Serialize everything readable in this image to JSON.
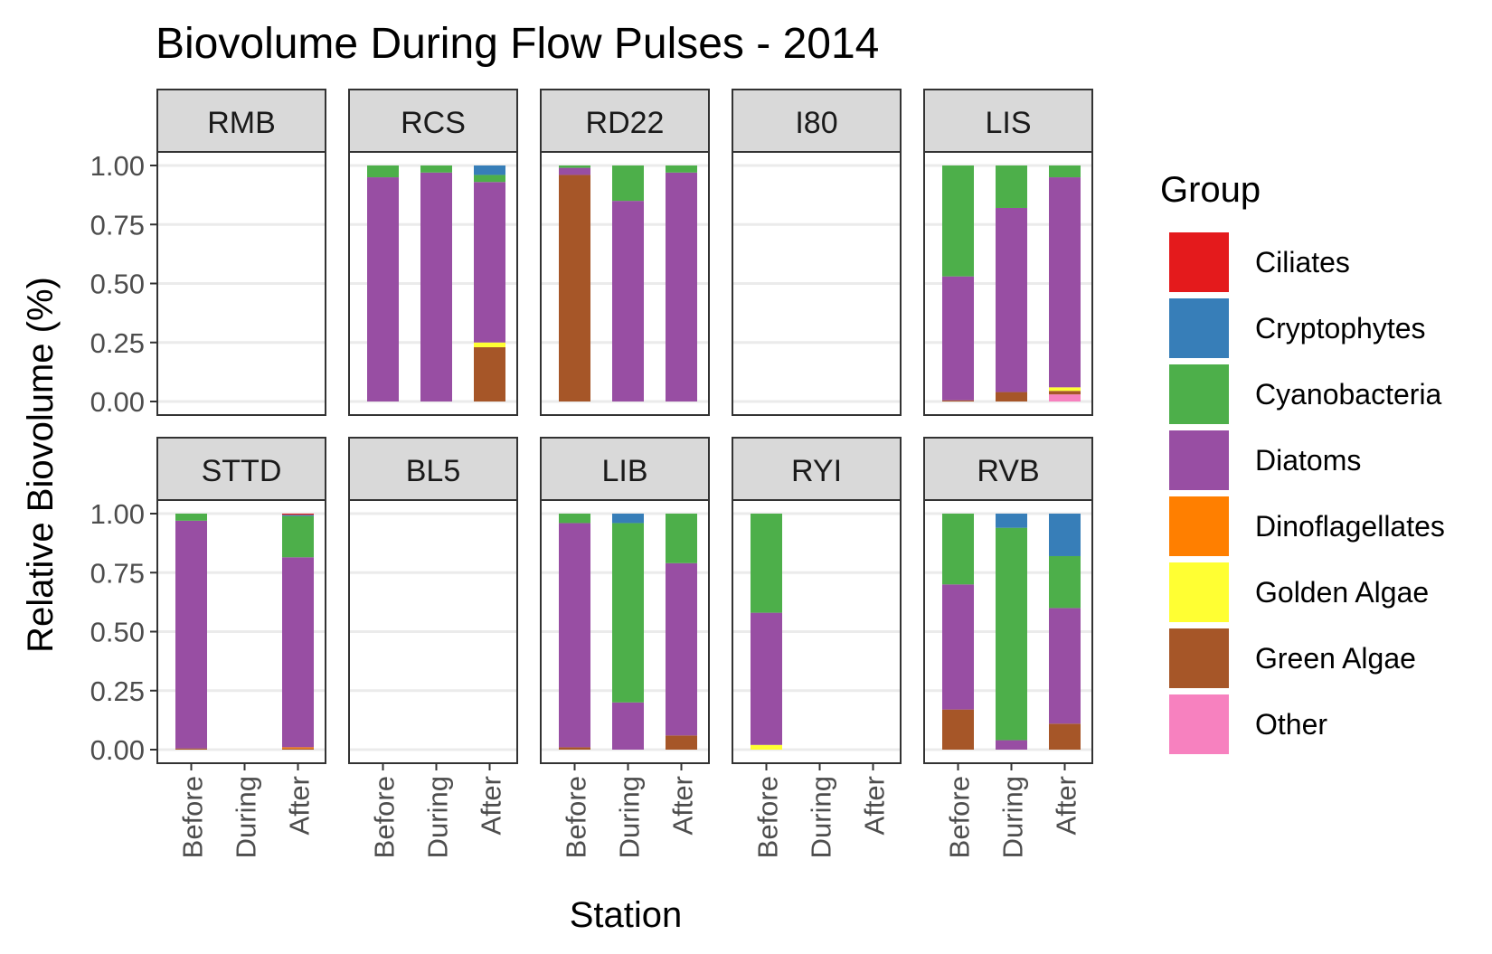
{
  "chart_data": {
    "type": "bar",
    "stacked": true,
    "faceted": true,
    "title": "Biovolume During Flow Pulses - 2014",
    "xlabel": "Station",
    "ylabel": "Relative Biovolume (%)",
    "ylim": [
      0,
      1
    ],
    "yticks": [
      "0.00",
      "0.25",
      "0.50",
      "0.75",
      "1.00"
    ],
    "categories": [
      "Before",
      "During",
      "After"
    ],
    "grid": true,
    "legend": {
      "title": "Group",
      "position": "right",
      "items": [
        {
          "name": "Ciliates",
          "color": "#E41A1C"
        },
        {
          "name": "Cryptophytes",
          "color": "#377EB8"
        },
        {
          "name": "Cyanobacteria",
          "color": "#4DAF4A"
        },
        {
          "name": "Diatoms",
          "color": "#984EA3"
        },
        {
          "name": "Dinoflagellates",
          "color": "#FF7F00"
        },
        {
          "name": "Golden Algae",
          "color": "#FFFF33"
        },
        {
          "name": "Green Algae",
          "color": "#A65628"
        },
        {
          "name": "Other",
          "color": "#F781BF"
        }
      ]
    },
    "stack_order_bottom_to_top": [
      "Other",
      "Green Algae",
      "Golden Algae",
      "Dinoflagellates",
      "Diatoms",
      "Cyanobacteria",
      "Cryptophytes",
      "Ciliates"
    ],
    "panels": [
      {
        "station": "RMB",
        "bars": {
          "Before": {},
          "During": {},
          "After": {}
        }
      },
      {
        "station": "RCS",
        "bars": {
          "Before": {
            "Diatoms": 0.95,
            "Cyanobacteria": 0.05
          },
          "During": {
            "Diatoms": 0.97,
            "Cyanobacteria": 0.03
          },
          "After": {
            "Green Algae": 0.23,
            "Golden Algae": 0.02,
            "Diatoms": 0.68,
            "Cyanobacteria": 0.03,
            "Cryptophytes": 0.04
          }
        }
      },
      {
        "station": "RD22",
        "bars": {
          "Before": {
            "Green Algae": 0.96,
            "Diatoms": 0.03,
            "Cyanobacteria": 0.01
          },
          "During": {
            "Diatoms": 0.85,
            "Cyanobacteria": 0.15
          },
          "After": {
            "Diatoms": 0.97,
            "Cyanobacteria": 0.03
          }
        }
      },
      {
        "station": "I80",
        "bars": {
          "Before": {},
          "During": {},
          "After": {}
        }
      },
      {
        "station": "LIS",
        "bars": {
          "Before": {
            "Green Algae": 0.005,
            "Diatoms": 0.525,
            "Cyanobacteria": 0.47
          },
          "During": {
            "Green Algae": 0.04,
            "Diatoms": 0.78,
            "Cyanobacteria": 0.18
          },
          "After": {
            "Other": 0.03,
            "Green Algae": 0.015,
            "Golden Algae": 0.015,
            "Diatoms": 0.89,
            "Cyanobacteria": 0.05
          }
        }
      },
      {
        "station": "STTD",
        "bars": {
          "Before": {
            "Green Algae": 0.005,
            "Diatoms": 0.965,
            "Cyanobacteria": 0.03
          },
          "During": {},
          "After": {
            "Ciliates": 0.005,
            "Green Algae": 0.005,
            "Dinoflagellates": 0.005,
            "Diatoms": 0.805,
            "Cyanobacteria": 0.175,
            "Cryptophytes": 0.005
          }
        }
      },
      {
        "station": "BL5",
        "bars": {
          "Before": {},
          "During": {},
          "After": {}
        }
      },
      {
        "station": "LIB",
        "bars": {
          "Before": {
            "Green Algae": 0.01,
            "Diatoms": 0.95,
            "Cyanobacteria": 0.04
          },
          "During": {
            "Diatoms": 0.2,
            "Cyanobacteria": 0.76,
            "Cryptophytes": 0.04
          },
          "After": {
            "Green Algae": 0.06,
            "Diatoms": 0.73,
            "Cyanobacteria": 0.21
          }
        }
      },
      {
        "station": "RYI",
        "bars": {
          "Before": {
            "Golden Algae": 0.02,
            "Diatoms": 0.56,
            "Cyanobacteria": 0.42
          },
          "During": {},
          "After": {}
        }
      },
      {
        "station": "RVB",
        "bars": {
          "Before": {
            "Green Algae": 0.17,
            "Diatoms": 0.53,
            "Cyanobacteria": 0.3
          },
          "During": {
            "Diatoms": 0.04,
            "Cyanobacteria": 0.9,
            "Cryptophytes": 0.06
          },
          "After": {
            "Green Algae": 0.11,
            "Diatoms": 0.49,
            "Cyanobacteria": 0.22,
            "Cryptophytes": 0.18
          }
        }
      }
    ]
  }
}
